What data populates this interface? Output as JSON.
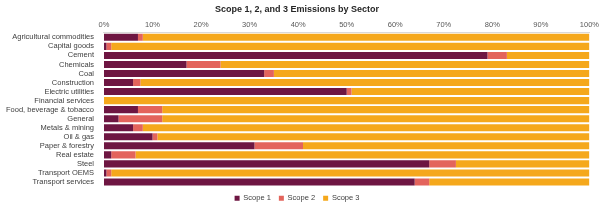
{
  "chart_data": {
    "type": "bar",
    "orientation": "horizontal",
    "stacked": true,
    "title": "Scope 1, 2, and 3 Emissions by Sector",
    "categories": [
      "Agricultural commodities",
      "Capital goods",
      "Cement",
      "Chemicals",
      "Coal",
      "Construction",
      "Electric utilities",
      "Financial services",
      "Food, beverage & tobacco",
      "General",
      "Metals & mining",
      "Oil & gas",
      "Paper & forestry",
      "Real estate",
      "Steel",
      "Transport OEMS",
      "Transport services"
    ],
    "series": [
      {
        "name": "Scope 1",
        "color": "#6e1642",
        "values": [
          7,
          0.5,
          79,
          17,
          33,
          6,
          50,
          0,
          7,
          3,
          6,
          10,
          31,
          1.5,
          67,
          0.5,
          64
        ]
      },
      {
        "name": "Scope 2",
        "color": "#e3645c",
        "values": [
          1,
          1,
          4,
          7,
          2,
          1.5,
          1,
          0,
          5,
          9,
          2,
          1,
          10,
          5,
          5.5,
          1,
          3
        ]
      },
      {
        "name": "Scope 3",
        "color": "#f5a81c",
        "values": [
          92,
          98.5,
          17,
          76,
          65,
          92.5,
          49,
          100,
          88,
          88,
          92,
          89,
          59,
          93.5,
          27.5,
          98.5,
          33
        ]
      }
    ],
    "xlim": [
      0,
      100
    ],
    "xticks": [
      {
        "value": 0,
        "label": "0%"
      },
      {
        "value": 10,
        "label": "10%"
      },
      {
        "value": 20,
        "label": "20%"
      },
      {
        "value": 30,
        "label": "30%"
      },
      {
        "value": 40,
        "label": "40%"
      },
      {
        "value": 50,
        "label": "50%"
      },
      {
        "value": 60,
        "label": "60%"
      },
      {
        "value": 70,
        "label": "70%"
      },
      {
        "value": 80,
        "label": "80%"
      },
      {
        "value": 90,
        "label": "90%"
      },
      {
        "value": 100,
        "label": "100%"
      }
    ],
    "grid": false,
    "legend": "bottom"
  }
}
